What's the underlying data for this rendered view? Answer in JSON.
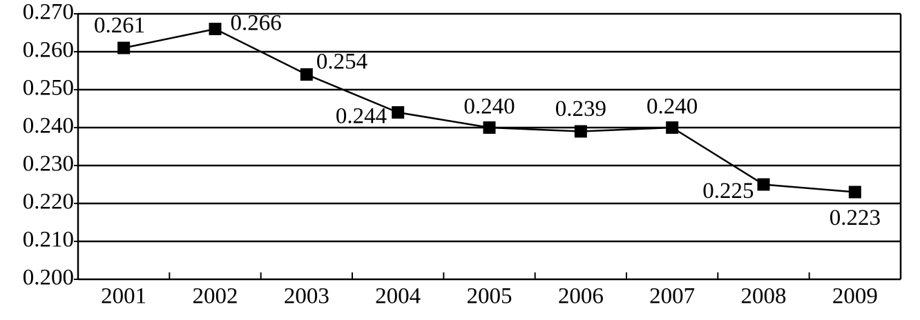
{
  "chart_data": {
    "type": "line",
    "categories": [
      "2001",
      "2002",
      "2003",
      "2004",
      "2005",
      "2006",
      "2007",
      "2008",
      "2009"
    ],
    "series": [
      {
        "color": "#000000",
        "values": [
          0.261,
          0.266,
          0.254,
          0.244,
          0.24,
          0.239,
          0.24,
          0.225,
          0.223
        ],
        "value_labels": [
          "0.261",
          "0.266",
          "0.254",
          "0.244",
          "0.240",
          "0.239",
          "0.240",
          "0.225",
          "0.223"
        ]
      }
    ],
    "ylim": [
      0.2,
      0.27
    ],
    "yticks": [
      {
        "value": 0.2,
        "label": "0.200"
      },
      {
        "value": 0.21,
        "label": "0.210"
      },
      {
        "value": 0.22,
        "label": "0.220"
      },
      {
        "value": 0.23,
        "label": "0.230"
      },
      {
        "value": 0.24,
        "label": "0.240"
      },
      {
        "value": 0.25,
        "label": "0.250"
      },
      {
        "value": 0.26,
        "label": "0.260"
      },
      {
        "value": 0.27,
        "label": "0.270"
      }
    ],
    "grid": true
  }
}
